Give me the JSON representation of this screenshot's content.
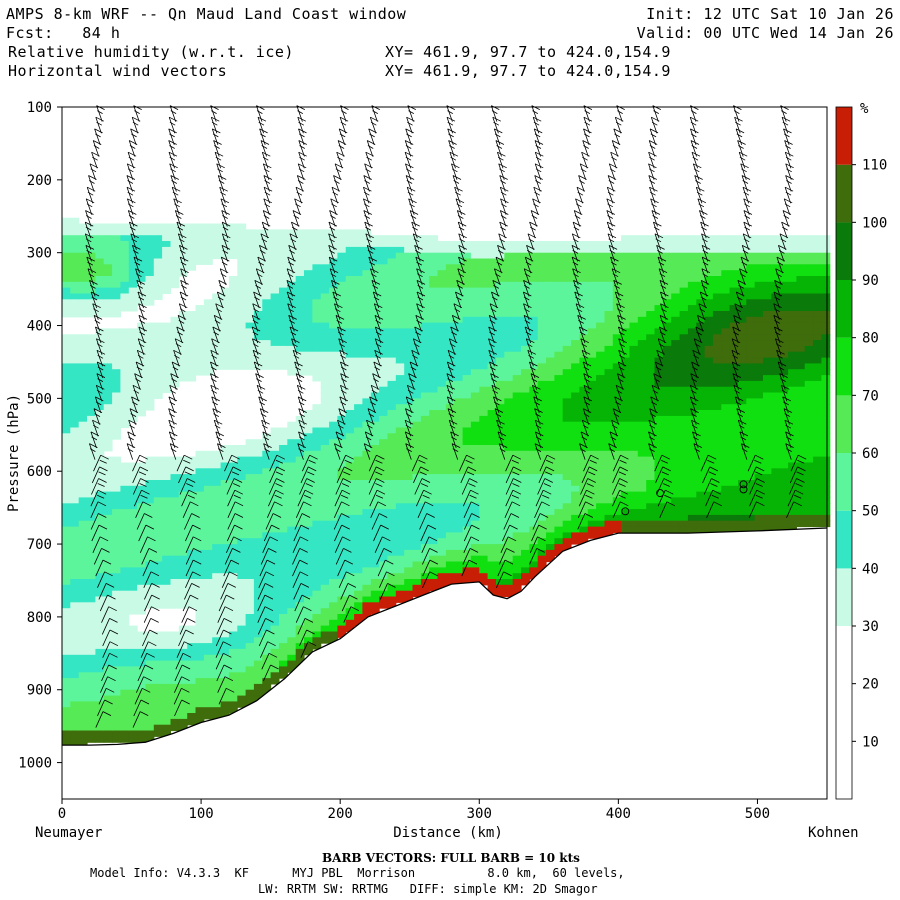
{
  "header": {
    "line1_left": "AMPS 8-km WRF -- Qn Maud Land Coast window",
    "line1_right": "Init: 12 UTC Sat 10 Jan 26",
    "line2_left": "Fcst:   84 h",
    "line2_right": "Valid: 00 UTC Wed 14 Jan 26",
    "line3_left": "Relative humidity (w.r.t. ice)",
    "line3_right": "XY= 461.9, 97.7 to 424.0,154.9",
    "line4_left": "Horizontal wind vectors",
    "line4_right": "XY= 461.9, 97.7 to 424.0,154.9"
  },
  "footer": {
    "barb_note": "BARB VECTORS:  FULL BARB = 10 kts",
    "model_line1": "Model Info: V4.3.3  KF      MYJ PBL  Morrison          8.0 km,  60 levels,",
    "model_line2": "LW: RRTM SW: RRTMG   DIFF: simple KM: 2D Smagor"
  },
  "chart_data": {
    "type": "heatmap",
    "title": "Relative humidity (w.r.t. ice)",
    "xlabel": "Distance (km)",
    "ylabel": "Pressure (hPa)",
    "x_endpoint_labels": {
      "left": "Neumayer",
      "right": "Kohnen"
    },
    "xlim": [
      0,
      550
    ],
    "ylim": [
      100,
      1050
    ],
    "y_inverted": true,
    "x_ticks": [
      0,
      100,
      200,
      300,
      400,
      500
    ],
    "y_ticks": [
      100,
      200,
      300,
      400,
      500,
      600,
      700,
      800,
      900,
      1000
    ],
    "colorbar": {
      "unit_label": "%",
      "tick_labels": [
        10,
        20,
        30,
        40,
        50,
        60,
        70,
        80,
        90,
        100,
        110
      ],
      "bins": [
        {
          "from": 0,
          "to": 10,
          "color": "#ffffff"
        },
        {
          "from": 10,
          "to": 20,
          "color": "#ffffff"
        },
        {
          "from": 20,
          "to": 30,
          "color": "#ffffff"
        },
        {
          "from": 30,
          "to": 40,
          "color": "#c8fae6"
        },
        {
          "from": 40,
          "to": 50,
          "color": "#34e6c3"
        },
        {
          "from": 50,
          "to": 60,
          "color": "#5cf59c"
        },
        {
          "from": 60,
          "to": 70,
          "color": "#56ea56"
        },
        {
          "from": 70,
          "to": 80,
          "color": "#10e010"
        },
        {
          "from": 80,
          "to": 90,
          "color": "#06b406"
        },
        {
          "from": 90,
          "to": 100,
          "color": "#0a7a0a"
        },
        {
          "from": 100,
          "to": 110,
          "color": "#3f6d0c"
        },
        {
          "from": 110,
          "to": 120,
          "color": "#c81e06"
        }
      ]
    },
    "terrain_surface": {
      "x_km": [
        0,
        20,
        40,
        60,
        80,
        100,
        120,
        140,
        160,
        180,
        200,
        220,
        240,
        260,
        280,
        300,
        310,
        320,
        330,
        340,
        360,
        380,
        400,
        450,
        500,
        550
      ],
      "p_hPa": [
        976,
        976,
        975,
        972,
        960,
        945,
        935,
        915,
        885,
        848,
        830,
        800,
        785,
        770,
        755,
        752,
        770,
        775,
        765,
        745,
        710,
        695,
        685,
        685,
        682,
        678
      ]
    },
    "moist_layer_top_hPa": {
      "x_km": [
        0,
        100,
        200,
        300,
        400,
        500,
        550
      ],
      "p_hPa": [
        255,
        262,
        268,
        285,
        280,
        280,
        278
      ]
    },
    "barb_columns_x_km": [
      25,
      55,
      85,
      115,
      145,
      170,
      200,
      225,
      255,
      285,
      315,
      340,
      375,
      400,
      430,
      460,
      490,
      520
    ],
    "calm_markers": [
      {
        "x_km": 405,
        "p_hPa": 655
      },
      {
        "x_km": 430,
        "p_hPa": 630
      },
      {
        "x_km": 490,
        "p_hPa": 618
      },
      {
        "x_km": 490,
        "p_hPa": 625
      }
    ]
  }
}
